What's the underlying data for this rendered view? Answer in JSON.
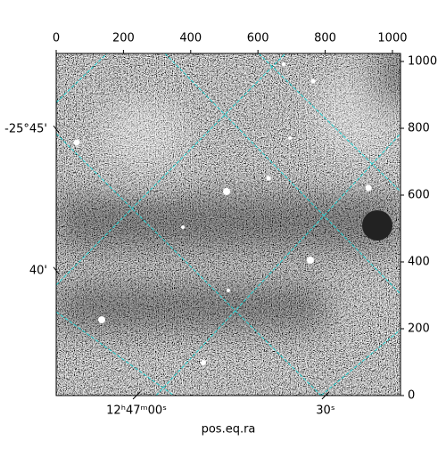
{
  "chart_data": {
    "type": "image",
    "xlabel": "pos.eq.ra",
    "xlim": [
      0,
      1024
    ],
    "ylim": [
      0,
      1024
    ],
    "xticks": [
      0,
      200,
      400,
      600,
      800,
      1000
    ],
    "yticks": [
      0,
      200,
      400,
      600,
      800,
      1000
    ],
    "ra_ticks": [
      {
        "value": 239,
        "label": "12ʰ47ᵐ00ˢ"
      },
      {
        "value": 801,
        "label": "30ˢ"
      }
    ],
    "dec_ticks": [
      {
        "value": 797,
        "label": "-25°45'"
      },
      {
        "value": 374,
        "label": "40'"
      }
    ],
    "grid_color": "#22d3d3"
  }
}
